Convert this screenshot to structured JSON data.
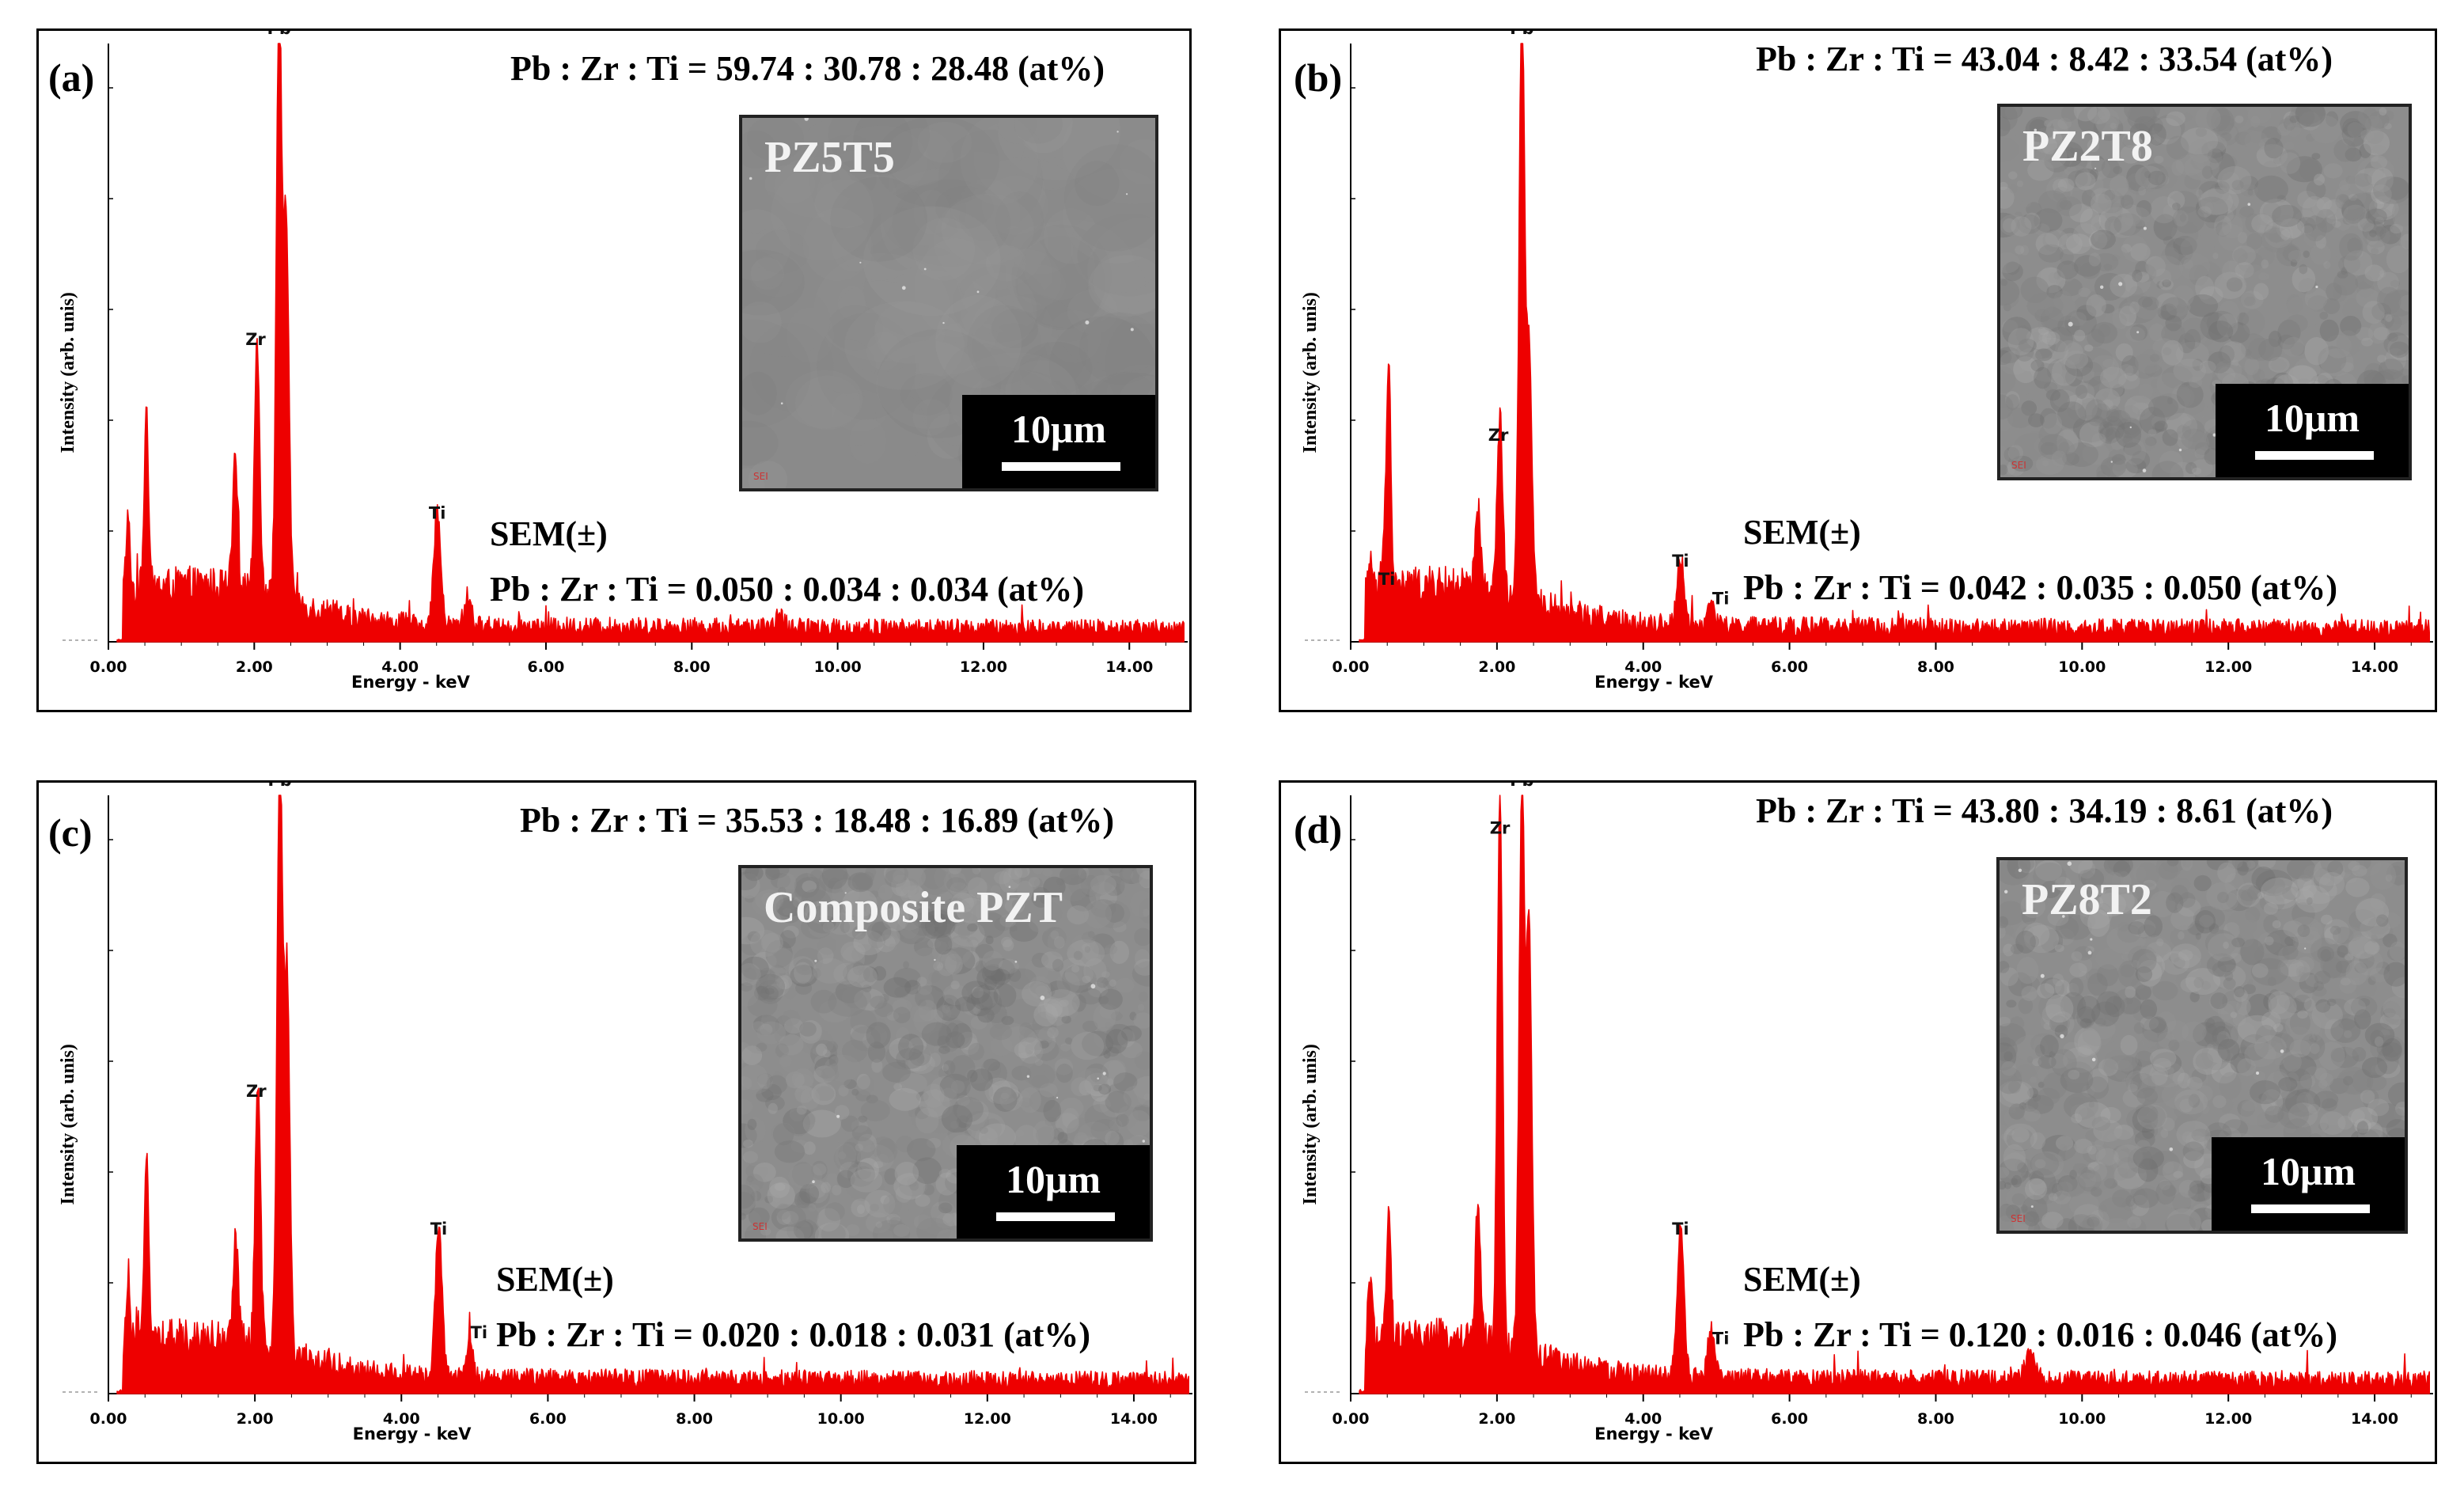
{
  "chart_data": [
    {
      "type": "line",
      "panel_label": "(a)",
      "sample": "PZ5T5",
      "composition_ratio": "Pb : Zr : Ti = 59.74 : 30.78 : 28.48 (at%)",
      "sem_uncertainty_label": "SEM(±)",
      "sem_uncertainty_ratio": "Pb : Zr : Ti = 0.050 : 0.034 : 0.034 (at%)",
      "scale_bar": "10μm",
      "xlabel": "Energy - keV",
      "ylabel": "Intensity  (arb. unis)",
      "xlim": [
        0,
        14.8
      ],
      "x_tick_labels": [
        "0.00",
        "2.00",
        "4.00",
        "6.00",
        "8.00",
        "10.00",
        "12.00",
        "14.00"
      ],
      "ylim": [
        0,
        100
      ],
      "peak_labels": [
        {
          "text": "Pb",
          "energy": 2.34,
          "rel_intensity": 100
        },
        {
          "text": "Zr",
          "energy": 2.04,
          "rel_intensity": 48
        },
        {
          "text": "Ti",
          "energy": 4.51,
          "rel_intensity": 19
        }
      ],
      "peaks": [
        {
          "energy": 0.27,
          "rel_intensity": 12
        },
        {
          "energy": 0.52,
          "rel_intensity": 29
        },
        {
          "energy": 1.74,
          "rel_intensity": 21
        },
        {
          "energy": 2.04,
          "rel_intensity": 43
        },
        {
          "energy": 2.34,
          "rel_intensity": 100
        },
        {
          "energy": 2.44,
          "rel_intensity": 63
        },
        {
          "energy": 4.51,
          "rel_intensity": 19
        },
        {
          "energy": 4.93,
          "rel_intensity": 5
        },
        {
          "energy": 9.2,
          "rel_intensity": 2
        }
      ]
    },
    {
      "type": "line",
      "panel_label": "(b)",
      "sample": "PZ2T8",
      "composition_ratio": "Pb : Zr : Ti = 43.04 : 8.42 : 33.54 (at%)",
      "sem_uncertainty_label": "SEM(±)",
      "sem_uncertainty_ratio": "Pb : Zr : Ti = 0.042 : 0.035 : 0.050 (at%)",
      "scale_bar": "10μm",
      "xlabel": "Energy - keV",
      "ylabel": "Intensity  (arb. unis)",
      "xlim": [
        0,
        14.8
      ],
      "x_tick_labels": [
        "0.00",
        "2.00",
        "4.00",
        "6.00",
        "8.00",
        "10.00",
        "12.00",
        "14.00"
      ],
      "ylim": [
        0,
        100
      ],
      "peak_labels": [
        {
          "text": "Pb",
          "energy": 2.34,
          "rel_intensity": 100
        },
        {
          "text": "Zr",
          "energy": 2.04,
          "rel_intensity": 32
        },
        {
          "text": "Ti",
          "energy": 4.51,
          "rel_intensity": 11
        },
        {
          "text": "Ti",
          "energy": 0.45,
          "rel_intensity": 9
        },
        {
          "text": "Ti",
          "energy": 4.93,
          "rel_intensity": 6
        }
      ],
      "peaks": [
        {
          "energy": 0.27,
          "rel_intensity": 6
        },
        {
          "energy": 0.45,
          "rel_intensity": 9
        },
        {
          "energy": 0.52,
          "rel_intensity": 37
        },
        {
          "energy": 1.74,
          "rel_intensity": 13
        },
        {
          "energy": 2.04,
          "rel_intensity": 30
        },
        {
          "energy": 2.34,
          "rel_intensity": 100
        },
        {
          "energy": 2.44,
          "rel_intensity": 42
        },
        {
          "energy": 4.51,
          "rel_intensity": 11
        },
        {
          "energy": 4.93,
          "rel_intensity": 4
        }
      ]
    },
    {
      "type": "line",
      "panel_label": "(c)",
      "sample": "Composite PZT",
      "composition_ratio": "Pb : Zr : Ti = 35.53 : 18.48 : 16.89 (at%)",
      "sem_uncertainty_label": "SEM(±)",
      "sem_uncertainty_ratio": "Pb : Zr : Ti = 0.020 : 0.018 : 0.031 (at%)",
      "scale_bar": "10μm",
      "xlabel": "Energy - keV",
      "ylabel": "Intensity  (arb. unis)",
      "xlim": [
        0,
        14.8
      ],
      "x_tick_labels": [
        "0.00",
        "2.00",
        "4.00",
        "6.00",
        "8.00",
        "10.00",
        "12.00",
        "14.00"
      ],
      "ylim": [
        0,
        100
      ],
      "peak_labels": [
        {
          "text": "Pb",
          "energy": 2.34,
          "rel_intensity": 100
        },
        {
          "text": "Zr",
          "energy": 2.04,
          "rel_intensity": 48
        },
        {
          "text": "Ti",
          "energy": 4.51,
          "rel_intensity": 25
        },
        {
          "text": "Ti",
          "energy": 4.93,
          "rel_intensity": 9
        }
      ],
      "peaks": [
        {
          "energy": 0.27,
          "rel_intensity": 9
        },
        {
          "energy": 0.52,
          "rel_intensity": 33
        },
        {
          "energy": 1.74,
          "rel_intensity": 17
        },
        {
          "energy": 2.04,
          "rel_intensity": 44
        },
        {
          "energy": 2.34,
          "rel_intensity": 100
        },
        {
          "energy": 2.44,
          "rel_intensity": 63
        },
        {
          "energy": 4.51,
          "rel_intensity": 25
        },
        {
          "energy": 4.93,
          "rel_intensity": 6
        }
      ]
    },
    {
      "type": "line",
      "panel_label": "(d)",
      "sample": "PZ8T2",
      "composition_ratio": "Pb : Zr : Ti = 43.80 : 34.19 : 8.61 (at%)",
      "sem_uncertainty_label": "SEM(±)",
      "sem_uncertainty_ratio": "Pb : Zr : Ti = 0.120 : 0.016 : 0.046 (at%)",
      "scale_bar": "10μm",
      "xlabel": "Energy - keV",
      "ylabel": "Intensity  (arb. unis)",
      "xlim": [
        0,
        14.8
      ],
      "x_tick_labels": [
        "0.00",
        "2.00",
        "4.00",
        "6.00",
        "8.00",
        "10.00",
        "12.00",
        "14.00"
      ],
      "ylim": [
        0,
        100
      ],
      "peak_labels": [
        {
          "text": "Pb",
          "energy": 2.34,
          "rel_intensity": 100
        },
        {
          "text": "Zr",
          "energy": 2.04,
          "rel_intensity": 92
        },
        {
          "text": "Ti",
          "energy": 4.51,
          "rel_intensity": 25
        },
        {
          "text": "Ti",
          "energy": 4.93,
          "rel_intensity": 8
        }
      ],
      "peaks": [
        {
          "energy": 0.27,
          "rel_intensity": 12
        },
        {
          "energy": 0.52,
          "rel_intensity": 21
        },
        {
          "energy": 1.74,
          "rel_intensity": 23
        },
        {
          "energy": 2.04,
          "rel_intensity": 92
        },
        {
          "energy": 2.34,
          "rel_intensity": 95
        },
        {
          "energy": 2.44,
          "rel_intensity": 70
        },
        {
          "energy": 4.51,
          "rel_intensity": 25
        },
        {
          "energy": 4.93,
          "rel_intensity": 8
        },
        {
          "energy": 9.3,
          "rel_intensity": 5
        }
      ]
    }
  ],
  "colors": {
    "spectrum": "#ee0000",
    "sem_background": "#8e8e8e",
    "scale_box": "#000000"
  }
}
